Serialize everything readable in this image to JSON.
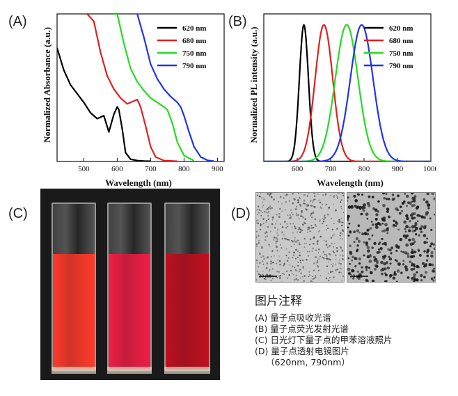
{
  "panels": {
    "a": "(A)",
    "b": "(B)",
    "c": "(C)",
    "d": "(D)"
  },
  "chart_data": [
    {
      "type": "line",
      "panel": "(A)",
      "xlabel": "Wavelength (nm)",
      "ylabel": "Normalized Absorbance (a.u.)",
      "xlim": [
        420,
        920
      ],
      "xticks": [
        500,
        600,
        700,
        800,
        900
      ],
      "yticks": false,
      "legend": "top-right",
      "series": [
        {
          "name": "620 nm",
          "color": "#000000",
          "x": [
            420,
            440,
            460,
            480,
            500,
            520,
            540,
            560,
            575,
            590,
            600,
            605,
            615,
            625,
            640,
            660,
            680,
            700
          ],
          "y": [
            0.77,
            0.62,
            0.52,
            0.46,
            0.4,
            0.33,
            0.29,
            0.31,
            0.2,
            0.32,
            0.37,
            0.35,
            0.22,
            0.06,
            0.015,
            0.006,
            0.003,
            0.002
          ]
        },
        {
          "name": "680 nm",
          "color": "#e02020",
          "x": [
            510,
            530,
            550,
            570,
            590,
            610,
            630,
            650,
            660,
            670,
            685,
            700,
            715,
            740,
            780
          ],
          "y": [
            1.12,
            0.95,
            0.74,
            0.58,
            0.49,
            0.43,
            0.39,
            0.41,
            0.42,
            0.37,
            0.24,
            0.1,
            0.03,
            0.006,
            0.002
          ]
        },
        {
          "name": "750 nm",
          "color": "#22dd22",
          "x": [
            590,
            600,
            620,
            640,
            660,
            680,
            700,
            720,
            740,
            750,
            765,
            780,
            800,
            830
          ],
          "y": [
            1.12,
            1.02,
            0.8,
            0.63,
            0.54,
            0.48,
            0.43,
            0.4,
            0.37,
            0.35,
            0.26,
            0.13,
            0.04,
            0.005
          ]
        },
        {
          "name": "790 nm",
          "color": "#2233ee",
          "x": [
            660,
            680,
            700,
            720,
            740,
            760,
            780,
            790,
            800,
            815,
            830,
            850,
            870,
            890
          ],
          "y": [
            1.12,
            0.84,
            0.66,
            0.56,
            0.49,
            0.44,
            0.4,
            0.37,
            0.31,
            0.2,
            0.1,
            0.03,
            0.008,
            0.002
          ]
        }
      ]
    },
    {
      "type": "line",
      "panel": "(B)",
      "xlabel": "Wavelength (nm)",
      "ylabel": "Normalized PL intensity (a.u.)",
      "xlim": [
        500,
        1000
      ],
      "xticks": [
        600,
        700,
        800,
        900,
        1000
      ],
      "yticks": false,
      "legend": "top-right",
      "series": [
        {
          "name": "620 nm",
          "color": "#000000",
          "peak": 620,
          "fwhm": 32
        },
        {
          "name": "680 nm",
          "color": "#e02020",
          "peak": 680,
          "fwhm": 62
        },
        {
          "name": "750 nm",
          "color": "#22dd22",
          "peak": 748,
          "fwhm": 80
        },
        {
          "name": "790 nm",
          "color": "#2233ee",
          "peak": 793,
          "fwhm": 80
        }
      ]
    }
  ],
  "photo": {
    "liquids": [
      "#ff3a2a",
      "#f01e45",
      "#c0101f"
    ]
  },
  "tem": {
    "scale_left": "30 nm",
    "scale_right": "30 nm"
  },
  "notes": {
    "title": "图片注释",
    "lines": [
      "(A) 量子点吸收光谱",
      "(B) 量子点荧光发射光谱",
      "(C) 日光灯下量子点的甲苯溶液照片",
      "(D) 量子点透射电镜图片",
      "（620nm, 790nm）"
    ]
  }
}
